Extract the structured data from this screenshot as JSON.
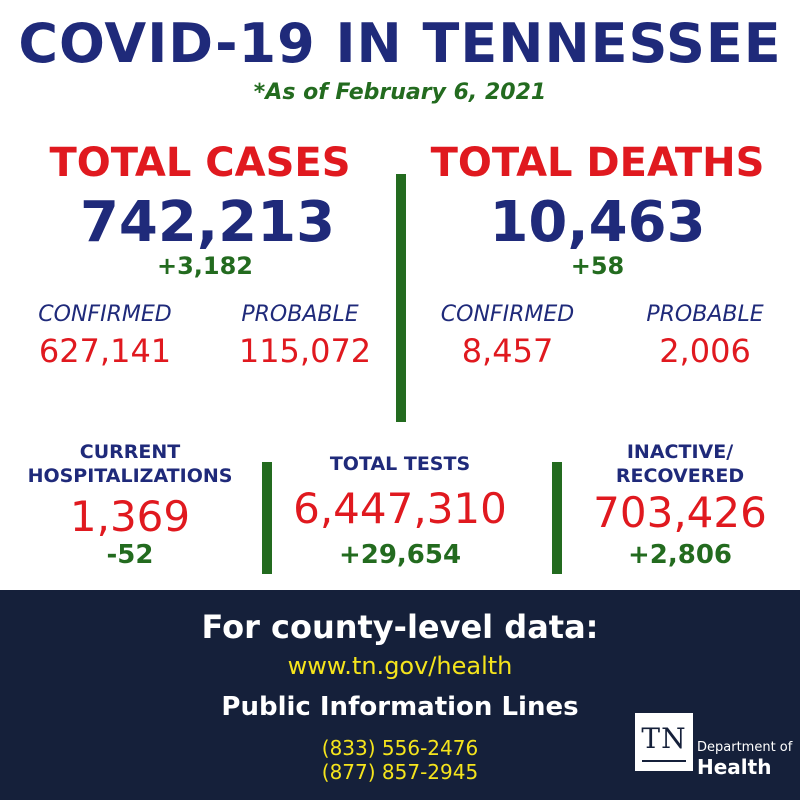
{
  "header": {
    "title": "COVID-19 IN TENNESSEE",
    "as_of": "*As of February 6, 2021"
  },
  "cases": {
    "heading": "TOTAL CASES",
    "total": "742,213",
    "change": "+3,182",
    "confirmed_label": "CONFIRMED",
    "confirmed_value": "627,141",
    "probable_label": "PROBABLE",
    "probable_value": "115,072"
  },
  "deaths": {
    "heading": "TOTAL DEATHS",
    "total": "10,463",
    "change": "+58",
    "confirmed_label": "CONFIRMED",
    "confirmed_value": "8,457",
    "probable_label": "PROBABLE",
    "probable_value": "2,006"
  },
  "hospitalizations": {
    "label_line1": "CURRENT",
    "label_line2": "HOSPITALIZATIONS",
    "value": "1,369",
    "change": "-52"
  },
  "tests": {
    "label": "TOTAL TESTS",
    "value": "6,447,310",
    "change": "+29,654"
  },
  "recovered": {
    "label_line1": "INACTIVE/",
    "label_line2": "RECOVERED",
    "value": "703,426",
    "change": "+2,806"
  },
  "footer": {
    "heading": "For county-level data:",
    "url": "www.tn.gov/health",
    "lines_heading": "Public Information Lines",
    "phone1": "(833) 556-2476",
    "phone2": "(877) 857-2945"
  },
  "logo": {
    "mark": "TN",
    "dept": "Department of",
    "name": "Health"
  },
  "colors": {
    "navy": "#1f2a7a",
    "red": "#e0191f",
    "green": "#236b1f",
    "footer_bg": "#15203a",
    "yellow": "#f5e41c"
  }
}
